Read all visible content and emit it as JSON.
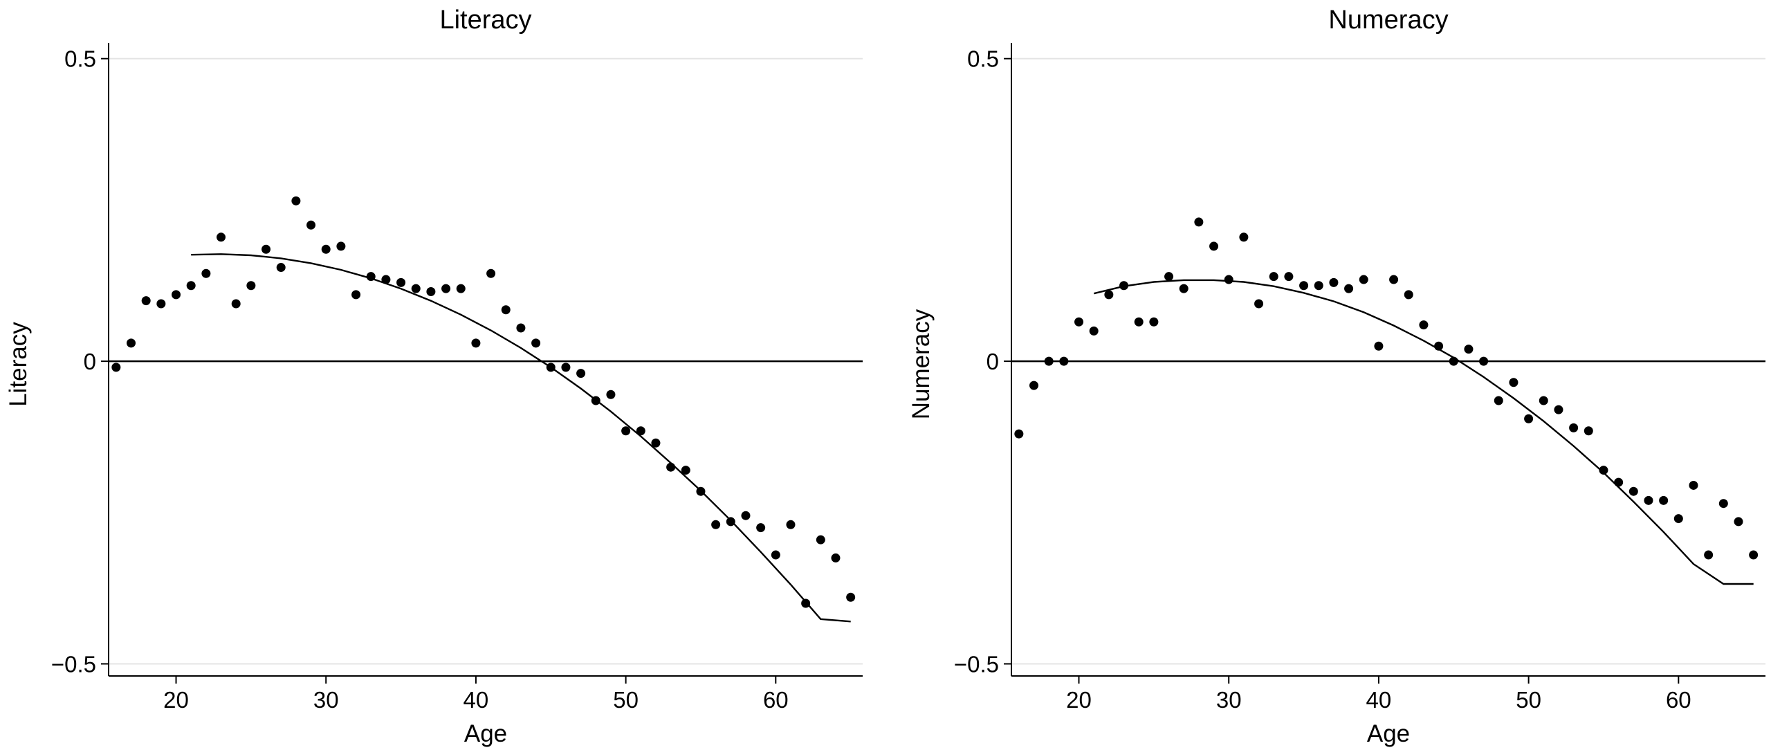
{
  "chart_data": [
    {
      "type": "scatter",
      "title": "Literacy",
      "xlabel": "Age",
      "ylabel": "Literacy",
      "xlim": [
        15.5,
        65.8
      ],
      "ylim": [
        -0.52,
        0.51
      ],
      "xticks": [
        20,
        30,
        40,
        50,
        60
      ],
      "yticks": [
        0.5,
        0,
        -0.5
      ],
      "ytick_labels": [
        "0.5",
        "0",
        "−0.5"
      ],
      "hline": 0,
      "grid": "horizontal",
      "series": [
        {
          "kind": "points",
          "x": [
            16,
            17,
            18,
            19,
            20,
            21,
            22,
            23,
            24,
            25,
            26,
            27,
            28,
            29,
            30,
            31,
            32,
            33,
            34,
            35,
            36,
            37,
            38,
            39,
            40,
            41,
            42,
            43,
            44,
            45,
            46,
            47,
            48,
            49,
            50,
            51,
            52,
            53,
            54,
            55,
            56,
            57,
            58,
            59,
            60,
            61,
            62,
            63,
            64,
            65
          ],
          "y": [
            -0.01,
            0.03,
            0.1,
            0.095,
            0.11,
            0.125,
            0.145,
            0.205,
            0.095,
            0.125,
            0.185,
            0.155,
            0.265,
            0.225,
            0.185,
            0.19,
            0.11,
            0.14,
            0.135,
            0.13,
            0.12,
            0.115,
            0.12,
            0.12,
            0.03,
            0.145,
            0.085,
            0.055,
            0.03,
            -0.01,
            -0.01,
            -0.02,
            -0.065,
            -0.055,
            -0.115,
            -0.115,
            -0.135,
            -0.175,
            -0.18,
            -0.215,
            -0.27,
            -0.265,
            -0.255,
            -0.275,
            -0.32,
            -0.27,
            -0.4,
            -0.295,
            -0.325,
            -0.39
          ]
        },
        {
          "kind": "fit",
          "x": [
            21,
            23,
            25,
            27,
            29,
            31,
            33,
            35,
            37,
            39,
            41,
            43,
            45,
            47,
            49,
            51,
            53,
            55,
            57,
            59,
            61,
            63,
            65
          ],
          "y": [
            0.176,
            0.177,
            0.175,
            0.17,
            0.162,
            0.151,
            0.137,
            0.12,
            0.1,
            0.077,
            0.051,
            0.022,
            -0.01,
            -0.045,
            -0.083,
            -0.124,
            -0.168,
            -0.214,
            -0.263,
            -0.315,
            -0.369,
            -0.426,
            -0.43
          ]
        }
      ]
    },
    {
      "type": "scatter",
      "title": "Numeracy",
      "xlabel": "Age",
      "ylabel": "Numeracy",
      "xlim": [
        15.5,
        65.8
      ],
      "ylim": [
        -0.52,
        0.51
      ],
      "xticks": [
        20,
        30,
        40,
        50,
        60
      ],
      "yticks": [
        0.5,
        0,
        -0.5
      ],
      "ytick_labels": [
        "0.5",
        "0",
        "−0.5"
      ],
      "hline": 0,
      "grid": "horizontal",
      "series": [
        {
          "kind": "points",
          "x": [
            16,
            17,
            18,
            19,
            20,
            21,
            22,
            23,
            24,
            25,
            26,
            27,
            28,
            29,
            30,
            31,
            32,
            33,
            34,
            35,
            36,
            37,
            38,
            39,
            40,
            41,
            42,
            43,
            44,
            45,
            46,
            47,
            48,
            49,
            50,
            51,
            52,
            53,
            54,
            55,
            56,
            57,
            58,
            59,
            60,
            61,
            62,
            63,
            64,
            65
          ],
          "y": [
            -0.12,
            -0.04,
            0.0,
            0.0,
            0.065,
            0.05,
            0.11,
            0.125,
            0.065,
            0.065,
            0.14,
            0.12,
            0.23,
            0.19,
            0.135,
            0.205,
            0.095,
            0.14,
            0.14,
            0.125,
            0.125,
            0.13,
            0.12,
            0.135,
            0.025,
            0.135,
            0.11,
            0.06,
            0.025,
            0.0,
            0.02,
            0.0,
            -0.065,
            -0.035,
            -0.095,
            -0.065,
            -0.08,
            -0.11,
            -0.115,
            -0.18,
            -0.2,
            -0.215,
            -0.23,
            -0.23,
            -0.26,
            -0.205,
            -0.32,
            -0.235,
            -0.265,
            -0.32
          ]
        },
        {
          "kind": "fit",
          "x": [
            21,
            23,
            25,
            27,
            29,
            31,
            33,
            35,
            37,
            39,
            41,
            43,
            45,
            47,
            49,
            51,
            53,
            55,
            57,
            59,
            61,
            63,
            65
          ],
          "y": [
            0.112,
            0.124,
            0.131,
            0.134,
            0.134,
            0.131,
            0.124,
            0.113,
            0.099,
            0.081,
            0.059,
            0.034,
            0.006,
            -0.026,
            -0.061,
            -0.099,
            -0.14,
            -0.184,
            -0.232,
            -0.282,
            -0.335,
            -0.368,
            -0.368
          ]
        }
      ]
    }
  ]
}
